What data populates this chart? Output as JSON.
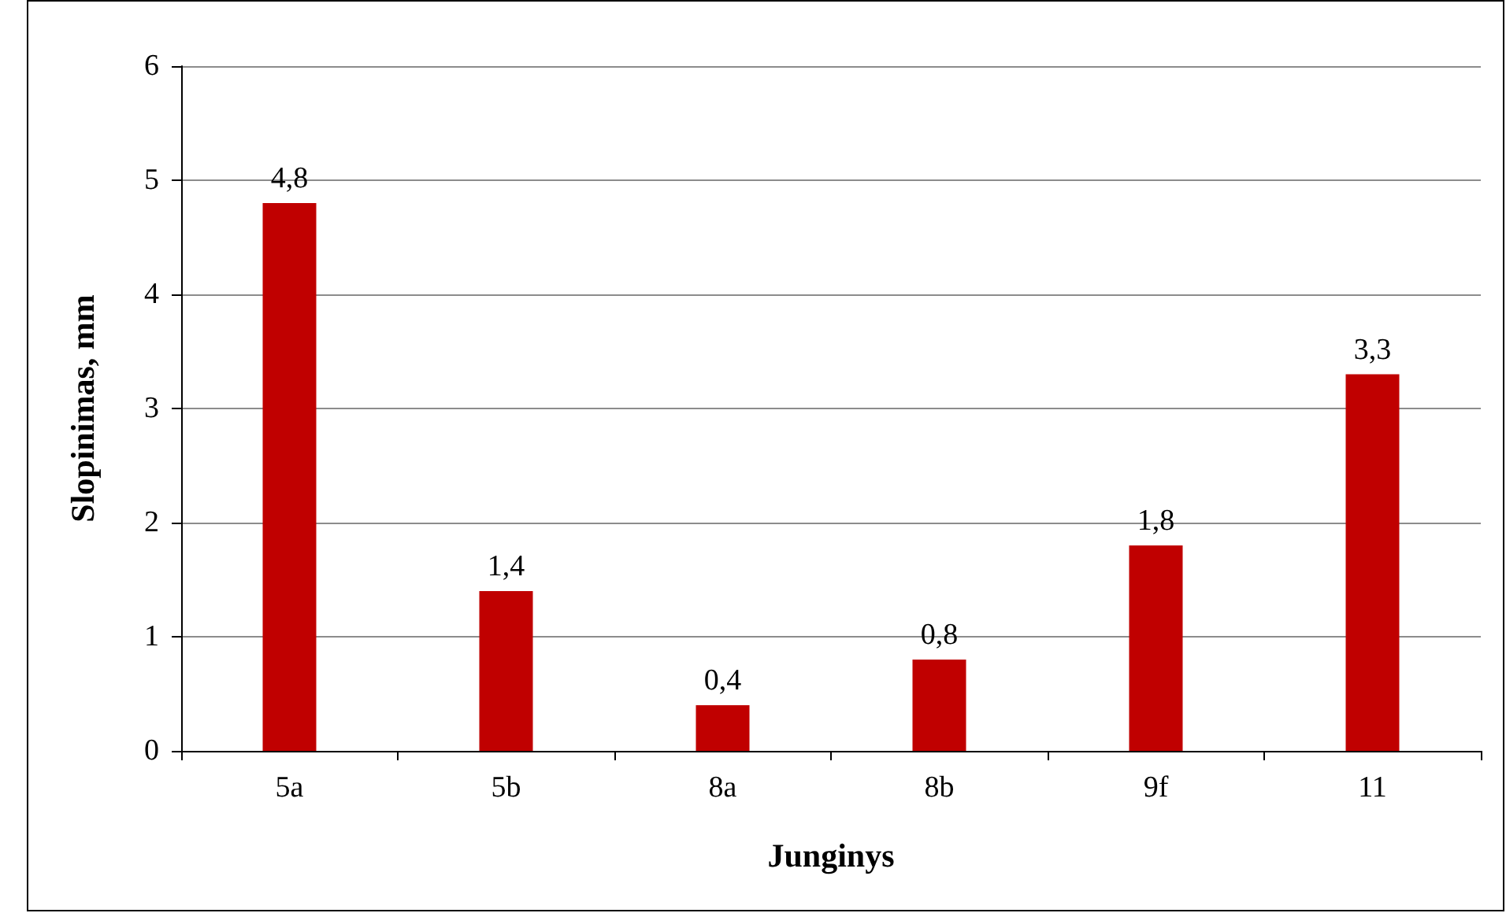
{
  "chart_data": {
    "type": "bar",
    "xlabel": "Junginys",
    "ylabel": "Slopinimas, mm",
    "categories": [
      "5a",
      "5b",
      "8a",
      "8b",
      "9f",
      "11"
    ],
    "values": [
      4.8,
      1.4,
      0.4,
      0.8,
      1.8,
      3.3
    ],
    "value_labels": [
      "4,8",
      "1,4",
      "0,4",
      "0,8",
      "1,8",
      "3,3"
    ],
    "color": "#c00000",
    "ylim": [
      0,
      6
    ],
    "yticks": [
      0,
      1,
      2,
      3,
      4,
      5,
      6
    ],
    "grid": "y"
  }
}
